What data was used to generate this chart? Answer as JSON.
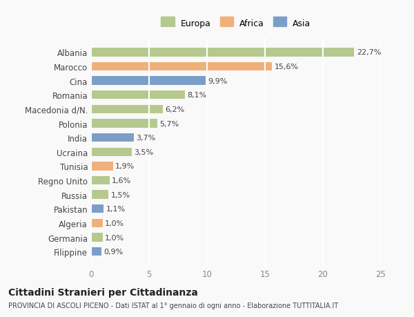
{
  "categories": [
    "Albania",
    "Marocco",
    "Cina",
    "Romania",
    "Macedonia d/N.",
    "Polonia",
    "India",
    "Ucraina",
    "Tunisia",
    "Regno Unito",
    "Russia",
    "Pakistan",
    "Algeria",
    "Germania",
    "Filippine"
  ],
  "values": [
    22.7,
    15.6,
    9.9,
    8.1,
    6.2,
    5.7,
    3.7,
    3.5,
    1.9,
    1.6,
    1.5,
    1.1,
    1.0,
    1.0,
    0.9
  ],
  "labels": [
    "22,7%",
    "15,6%",
    "9,9%",
    "8,1%",
    "6,2%",
    "5,7%",
    "3,7%",
    "3,5%",
    "1,9%",
    "1,6%",
    "1,5%",
    "1,1%",
    "1,0%",
    "1,0%",
    "0,9%"
  ],
  "continents": [
    "Europa",
    "Africa",
    "Asia",
    "Europa",
    "Europa",
    "Europa",
    "Asia",
    "Europa",
    "Africa",
    "Europa",
    "Europa",
    "Asia",
    "Africa",
    "Europa",
    "Asia"
  ],
  "colors": {
    "Europa": "#b5c98e",
    "Africa": "#f0b07a",
    "Asia": "#7b9ec9"
  },
  "legend_labels": [
    "Europa",
    "Africa",
    "Asia"
  ],
  "title": "Cittadini Stranieri per Cittadinanza",
  "subtitle": "PROVINCIA DI ASCOLI PICENO - Dati ISTAT al 1° gennaio di ogni anno - Elaborazione TUTTITALIA.IT",
  "xlim": [
    0,
    25
  ],
  "xticks": [
    0,
    5,
    10,
    15,
    20,
    25
  ],
  "background_color": "#f9f9f9",
  "grid_color": "#ffffff",
  "bar_height": 0.6
}
